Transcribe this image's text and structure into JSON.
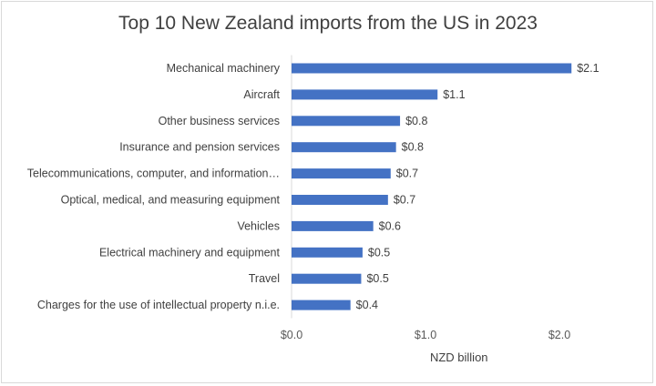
{
  "chart_data": {
    "type": "bar",
    "orientation": "horizontal",
    "title": "Top 10 New Zealand imports from the US in 2023",
    "xlabel": "NZD billion",
    "ylabel": "",
    "xlim": [
      0,
      2.0
    ],
    "x_ticks": [
      0,
      1.0,
      2.0
    ],
    "x_tick_labels": [
      "$0.0",
      "$1.0",
      "$2.0"
    ],
    "grid": false,
    "legend": "none",
    "bar_color": "#4472c4",
    "categories": [
      "Mechanical machinery",
      "Aircraft",
      "Other business services",
      "Insurance and pension services",
      "Telecommunications, computer, and information…",
      "Optical, medical, and measuring equipment",
      "Vehicles",
      "Electrical machinery and equipment",
      "Travel",
      "Charges for the use of intellectual property n.i.e."
    ],
    "values": [
      2.09,
      1.09,
      0.81,
      0.78,
      0.74,
      0.72,
      0.61,
      0.53,
      0.52,
      0.44
    ],
    "value_labels": [
      "$2.1",
      "$1.1",
      "$0.8",
      "$0.8",
      "$0.7",
      "$0.7",
      "$0.6",
      "$0.5",
      "$0.5",
      "$0.4"
    ]
  }
}
